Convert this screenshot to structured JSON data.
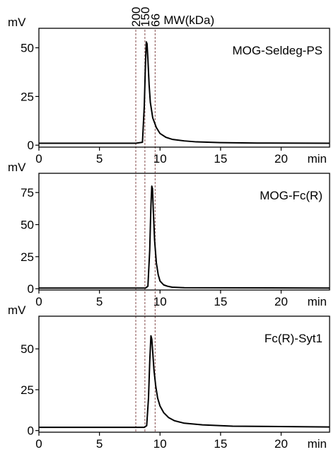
{
  "chart_data": [
    {
      "type": "line",
      "title": "MOG-Seldeg-PS",
      "ylabel": "mV",
      "xlabel": "min",
      "xlim": [
        0,
        24
      ],
      "ylim": [
        -1,
        60
      ],
      "xticks": [
        0,
        5,
        10,
        15,
        20
      ],
      "xtick_labels": [
        "0",
        "5",
        "10",
        "15",
        "20"
      ],
      "yticks": [
        0,
        25,
        50
      ],
      "ytick_labels": [
        "0",
        "25",
        "50"
      ],
      "series": [
        {
          "x": [
            0,
            8.0,
            8.55,
            8.7,
            8.8,
            8.87,
            8.93,
            9.0,
            9.1,
            9.2,
            9.4,
            9.7,
            10.0,
            10.5,
            11.0,
            12.0,
            13.0,
            15.0,
            18.0,
            24.0
          ],
          "y": [
            1.0,
            1.0,
            1.5,
            20.0,
            42.0,
            53.0,
            52.0,
            44.0,
            31.0,
            22.0,
            14.0,
            9.0,
            6.0,
            4.0,
            3.0,
            2.2,
            1.7,
            1.3,
            1.1,
            1.0
          ]
        }
      ]
    },
    {
      "type": "line",
      "title": "MOG-Fc(R)",
      "ylabel": "mV",
      "xlabel": "min",
      "xlim": [
        0,
        24
      ],
      "ylim": [
        -1,
        90
      ],
      "xticks": [
        0,
        5,
        10,
        15,
        20
      ],
      "xtick_labels": [
        "0",
        "5",
        "10",
        "15",
        "20"
      ],
      "yticks": [
        0,
        25,
        50,
        75
      ],
      "ytick_labels": [
        "0",
        "25",
        "50",
        "75"
      ],
      "series": [
        {
          "x": [
            0,
            8.8,
            9.0,
            9.15,
            9.25,
            9.32,
            9.38,
            9.45,
            9.55,
            9.7,
            9.85,
            10.0,
            10.3,
            10.6,
            11.0,
            12.0,
            24.0
          ],
          "y": [
            0.5,
            0.5,
            2.0,
            30.0,
            65.0,
            80.0,
            78.0,
            60.0,
            38.0,
            20.0,
            11.0,
            6.0,
            3.0,
            2.0,
            1.2,
            0.8,
            0.5
          ]
        }
      ]
    },
    {
      "type": "line",
      "title": "Fc(R)-Syt1",
      "ylabel": "mV",
      "xlabel": "min",
      "xlim": [
        0,
        24
      ],
      "ylim": [
        -1,
        70
      ],
      "xticks": [
        0,
        5,
        10,
        15,
        20
      ],
      "xtick_labels": [
        "0",
        "5",
        "10",
        "15",
        "20"
      ],
      "yticks": [
        0,
        25,
        50
      ],
      "ytick_labels": [
        "0",
        "25",
        "50"
      ],
      "series": [
        {
          "x": [
            0,
            8.7,
            8.9,
            9.05,
            9.15,
            9.25,
            9.32,
            9.4,
            9.5,
            9.65,
            9.8,
            10.0,
            10.3,
            10.7,
            11.2,
            12.0,
            13.5,
            16.0,
            24.0
          ],
          "y": [
            2.0,
            2.0,
            3.0,
            20.0,
            42.0,
            58.0,
            56.0,
            48.0,
            37.0,
            27.0,
            20.0,
            15.0,
            11.0,
            8.0,
            6.0,
            4.5,
            3.5,
            2.7,
            2.2
          ]
        }
      ]
    }
  ],
  "mw_markers": {
    "label": "MW(kDa)",
    "color": "#9a6a6a",
    "markers": [
      {
        "label": "200",
        "x": 8.0
      },
      {
        "label": "150",
        "x": 8.75
      },
      {
        "label": "66",
        "x": 9.6
      }
    ]
  },
  "colors": {
    "trace": "#000000",
    "axis": "#000000",
    "marker_line": "#9a6a6a"
  }
}
